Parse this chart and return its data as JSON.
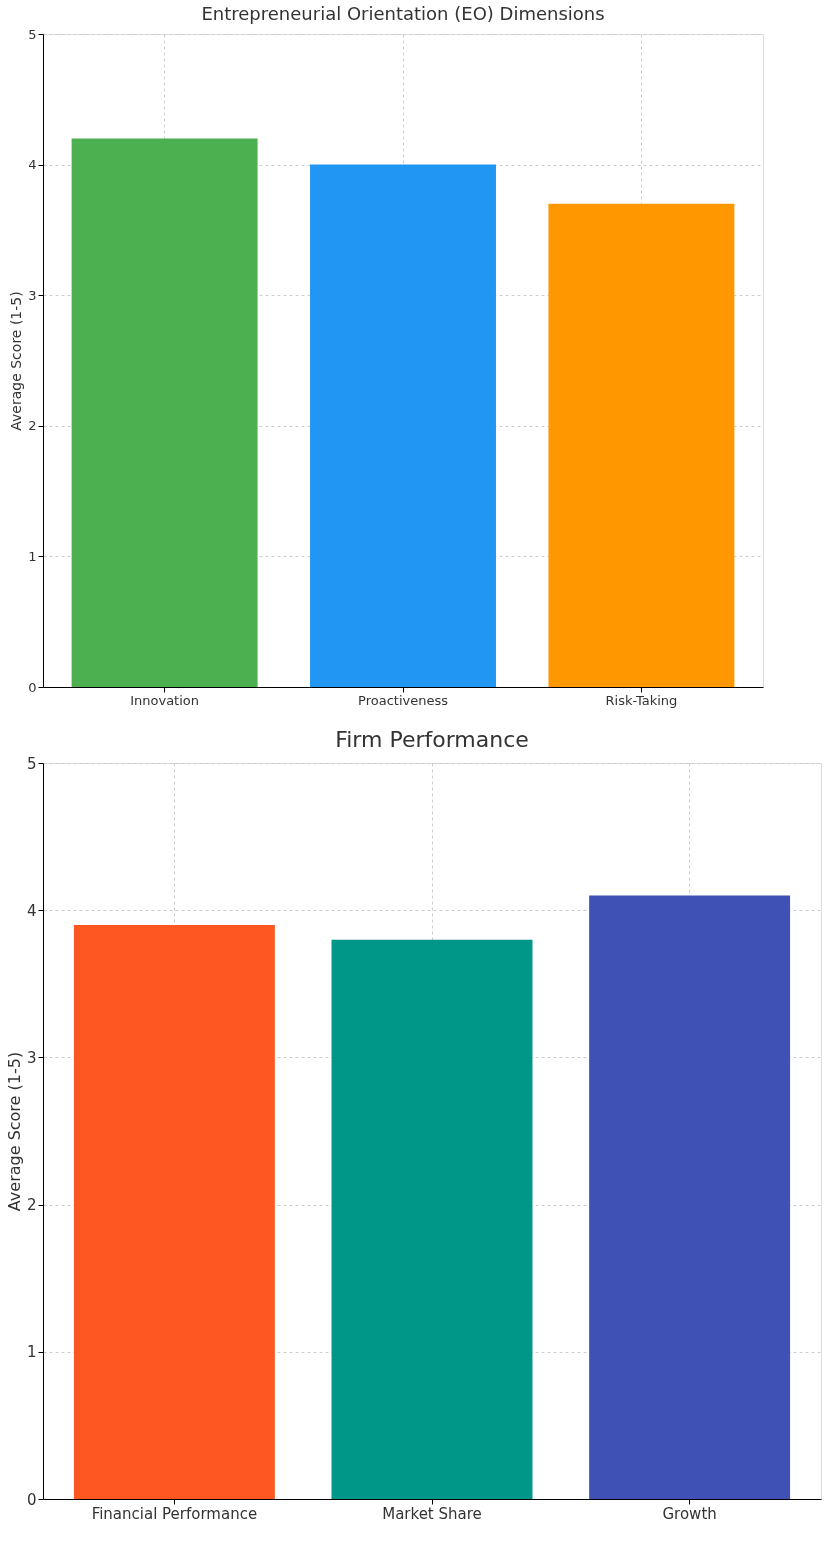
{
  "chart_data": [
    {
      "type": "bar",
      "title": "Entrepreneurial Orientation (EO) Dimensions",
      "ylabel": "Average Score (1-5)",
      "categories": [
        "Innovation",
        "Proactiveness",
        "Risk-Taking"
      ],
      "values": [
        4.2,
        4.0,
        3.7
      ],
      "colors": [
        "#4caf50",
        "#2196f3",
        "#ff9800"
      ],
      "ylim": [
        0,
        5
      ],
      "yticks": [
        0,
        1,
        2,
        3,
        4,
        5
      ],
      "grid": true
    },
    {
      "type": "bar",
      "title": "Firm Performance",
      "ylabel": "Average Score (1-5)",
      "categories": [
        "Financial Performance",
        "Market Share",
        "Growth"
      ],
      "values": [
        3.9,
        3.8,
        4.1
      ],
      "colors": [
        "#ff5722",
        "#009688",
        "#3f51b5"
      ],
      "ylim": [
        0,
        5
      ],
      "yticks": [
        0,
        1,
        2,
        3,
        4,
        5
      ],
      "grid": true
    }
  ]
}
